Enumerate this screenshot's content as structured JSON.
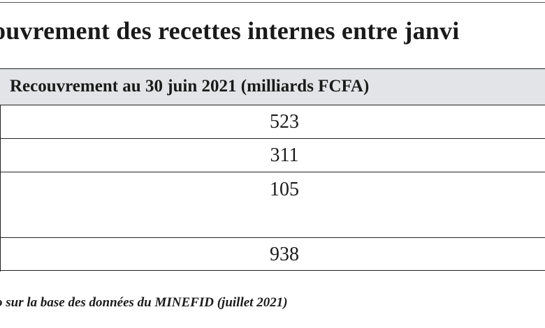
{
  "title": "ouvrement des recettes internes entre janvi",
  "table": {
    "header": "Recouvrement au 30 juin 2021 (milliards FCFA)",
    "rows": [
      "523",
      "311",
      "105"
    ],
    "total": "938"
  },
  "source": "o sur la base des données du MINEFID (juillet 2021)"
}
